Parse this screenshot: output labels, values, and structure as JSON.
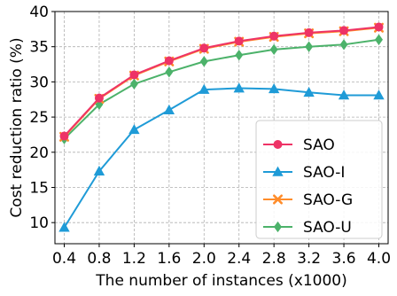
{
  "chart_data": {
    "type": "line",
    "title": "",
    "xlabel": "The number of instances (x1000)",
    "ylabel": "Cost reduction ratio (%)",
    "categories": [
      "0.4",
      "0.8",
      "1.2",
      "1.6",
      "2.0",
      "2.4",
      "2.8",
      "3.2",
      "3.6",
      "4.0"
    ],
    "ylim": [
      7,
      40
    ],
    "yticks": [
      10,
      15,
      20,
      25,
      30,
      35,
      40
    ],
    "grid": true,
    "grid_style": "dashed",
    "legend_position": "lower-right",
    "series": [
      {
        "name": "SAO",
        "color": "#ee3366",
        "marker": "circle",
        "values": [
          22.3,
          27.7,
          31.0,
          33.0,
          34.8,
          35.8,
          36.5,
          37.0,
          37.3,
          37.8
        ]
      },
      {
        "name": "SAO-I",
        "color": "#1f9bd7",
        "marker": "triangle",
        "values": [
          9.3,
          17.3,
          23.2,
          26.0,
          28.9,
          29.1,
          29.0,
          28.5,
          28.1,
          28.1
        ]
      },
      {
        "name": "SAO-G",
        "color": "#ff8c2a",
        "marker": "x",
        "values": [
          22.2,
          27.6,
          30.9,
          32.9,
          34.7,
          35.7,
          36.4,
          36.9,
          37.2,
          37.7
        ]
      },
      {
        "name": "SAO-U",
        "color": "#4cb26a",
        "marker": "diamond",
        "values": [
          21.9,
          26.8,
          29.7,
          31.4,
          32.9,
          33.8,
          34.6,
          35.0,
          35.3,
          36.0
        ]
      }
    ]
  }
}
